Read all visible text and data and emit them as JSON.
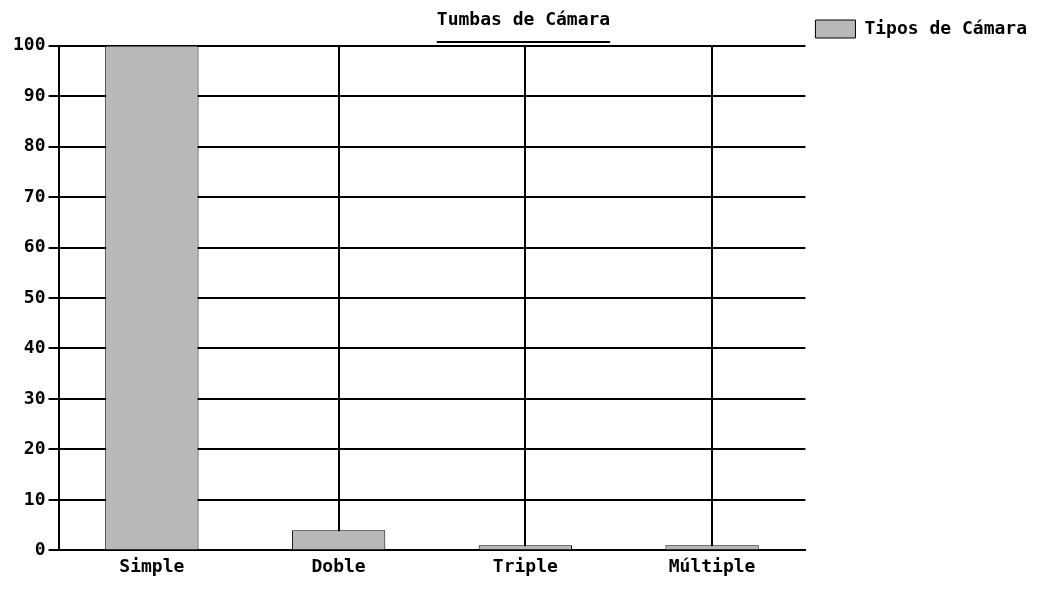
{
  "chart_data": {
    "type": "bar",
    "title": "Tumbas de Cámara",
    "categories": [
      "Simple",
      "Doble",
      "Triple",
      "Múltiple"
    ],
    "series": [
      {
        "name": "Tipos de Cámara",
        "color": "#b8b8b8",
        "values": [
          100,
          4,
          1,
          1
        ]
      }
    ],
    "ylim": [
      0,
      100
    ],
    "yticks": [
      0,
      10,
      20,
      30,
      40,
      50,
      60,
      70,
      80,
      90,
      100
    ],
    "grid": true,
    "legend": "top right"
  }
}
